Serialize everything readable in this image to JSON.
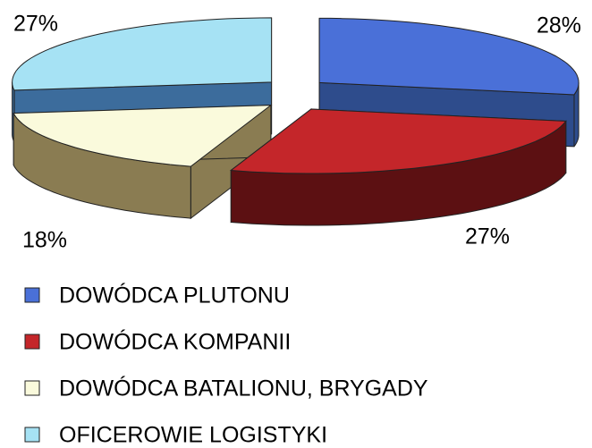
{
  "chart_data": {
    "type": "pie3d",
    "categories": [
      "DOWÓDCA PLUTONU",
      "DOWÓDCA KOMPANII",
      "DOWÓDCA BATALIONU, BRYGADY",
      "OFICEROWIE LOGISTYKI"
    ],
    "values": [
      28,
      27,
      18,
      27
    ],
    "value_labels": [
      "28%",
      "27%",
      "18%",
      "27%"
    ],
    "colors": [
      "#4a70d8",
      "#c4262a",
      "#fafadc",
      "#a6e2f4"
    ],
    "side_colors": [
      "#2e4c8c",
      "#5c1012",
      "#8a7c52",
      "#3c6c9c"
    ],
    "legend": "bottom"
  }
}
